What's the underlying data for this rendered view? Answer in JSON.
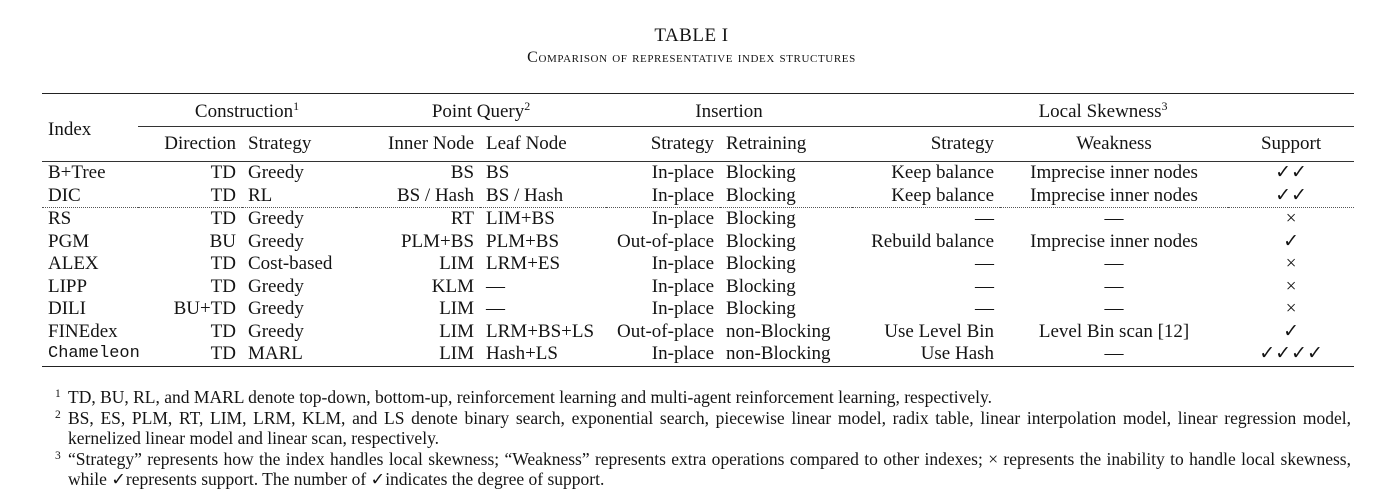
{
  "caption": {
    "table_number": "TABLE I",
    "title": "Comparison of representative index structures"
  },
  "header": {
    "index": "Index",
    "groups": [
      {
        "label": "Construction",
        "sup": "1"
      },
      {
        "label": "Point Query",
        "sup": "2"
      },
      {
        "label": "Insertion",
        "sup": ""
      },
      {
        "label": "Local Skewness",
        "sup": "3"
      }
    ],
    "columns": [
      "Direction",
      "Strategy",
      "Inner Node",
      "Leaf Node",
      "Strategy",
      "Retraining",
      "Strategy",
      "Weakness",
      "Support"
    ]
  },
  "rows": [
    [
      "B+Tree",
      "TD",
      "Greedy",
      "BS",
      "BS",
      "In-place",
      "Blocking",
      "Keep balance",
      "Imprecise inner nodes",
      "✓✓"
    ],
    [
      "DIC",
      "TD",
      "RL",
      "BS / Hash",
      "BS / Hash",
      "In-place",
      "Blocking",
      "Keep balance",
      "Imprecise inner nodes",
      "✓✓"
    ],
    [
      "RS",
      "TD",
      "Greedy",
      "RT",
      "LIM+BS",
      "In-place",
      "Blocking",
      "—",
      "—",
      "×"
    ],
    [
      "PGM",
      "BU",
      "Greedy",
      "PLM+BS",
      "PLM+BS",
      "Out-of-place",
      "Blocking",
      "Rebuild balance",
      "Imprecise inner nodes",
      "✓"
    ],
    [
      "ALEX",
      "TD",
      "Cost-based",
      "LIM",
      "LRM+ES",
      "In-place",
      "Blocking",
      "—",
      "—",
      "×"
    ],
    [
      "LIPP",
      "TD",
      "Greedy",
      "KLM",
      "—",
      "In-place",
      "Blocking",
      "—",
      "—",
      "×"
    ],
    [
      "DILI",
      "BU+TD",
      "Greedy",
      "LIM",
      "—",
      "In-place",
      "Blocking",
      "—",
      "—",
      "×"
    ],
    [
      "FINEdex",
      "TD",
      "Greedy",
      "LIM",
      "LRM+BS+LS",
      "Out-of-place",
      "non-Blocking",
      "Use Level Bin",
      "Level Bin scan [12]",
      "✓"
    ],
    [
      "Chameleon",
      "TD",
      "MARL",
      "LIM",
      "Hash+LS",
      "In-place",
      "non-Blocking",
      "Use Hash",
      "—",
      "✓✓✓✓"
    ]
  ],
  "footnotes": [
    {
      "mark": "1",
      "text": "TD, BU, RL, and MARL denote top-down, bottom-up, reinforcement learning and multi-agent reinforcement learning, respectively."
    },
    {
      "mark": "2",
      "text": "BS, ES, PLM, RT, LIM, LRM, KLM, and LS denote binary search, exponential search, piecewise linear model, radix table, linear interpolation model, linear regression model, kernelized linear model and linear scan, respectively."
    },
    {
      "mark": "3",
      "text": "“Strategy” represents how the index handles local skewness; “Weakness” represents extra operations compared to other indexes; × represents the inability to handle local skewness, while ✓represents support. The number of ✓indicates the degree of support."
    }
  ]
}
